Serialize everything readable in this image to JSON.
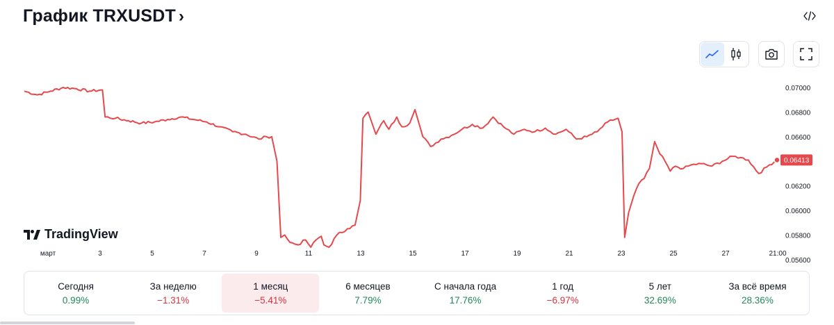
{
  "header": {
    "title": "График TRXUSDT",
    "chevron": "›",
    "embed_icon": "code-embed-icon"
  },
  "toolbar": {
    "line_icon": "line-chart-icon",
    "candles_icon": "candlestick-icon",
    "screenshot_icon": "camera-icon",
    "fullscreen_icon": "fullscreen-icon"
  },
  "branding": {
    "logo_text": "TradingView"
  },
  "colors": {
    "line": "#e5484d",
    "positive": "#22875a",
    "negative": "#d8323c",
    "active_tab": "#fcebec",
    "price_tag": "#e5484d"
  },
  "chart_data": {
    "type": "line",
    "symbol": "TRXUSDT",
    "y_ticks": [
      "0.07000",
      "0.06800",
      "0.06600",
      "0.06400",
      "0.06200",
      "0.06000",
      "0.05800",
      "0.05600"
    ],
    "ylim": [
      0.055,
      0.071
    ],
    "x_ticks": [
      "март",
      "3",
      "5",
      "7",
      "9",
      "11",
      "13",
      "15",
      "17",
      "19",
      "21",
      "23",
      "25",
      "27",
      "21:00"
    ],
    "last_price": "0.06413",
    "series": [
      {
        "x": [
          0,
          0.5,
          1,
          1.5,
          2,
          2.5,
          3,
          3.1,
          3.5,
          4,
          4.5,
          5,
          5.5,
          6,
          6.5,
          7,
          7.5,
          8,
          8.5,
          9,
          9.3,
          9.5,
          9.7,
          9.85,
          10,
          10.2,
          10.5,
          10.8,
          11,
          11.2,
          11.4,
          11.5,
          11.7,
          12,
          12.4,
          12.7,
          12.9,
          13.0,
          13.2,
          13.5,
          13.8,
          14,
          14.3,
          14.5,
          14.8,
          15,
          15.3,
          15.6,
          16,
          16.4,
          16.8,
          17.2,
          17.6,
          18,
          18.4,
          18.8,
          19.2,
          19.6,
          20,
          20.4,
          20.8,
          21.2,
          21.6,
          22,
          22.4,
          22.8,
          22.95,
          23.05,
          23.2,
          23.4,
          23.6,
          23.8,
          24,
          24.2,
          24.4,
          24.6,
          24.8,
          25,
          25.3,
          25.6,
          26,
          26.4,
          26.8,
          27.2,
          27.5,
          27.8,
          28.2,
          28.6,
          28.9
        ],
        "y": [
          0.0697,
          0.0694,
          0.0697,
          0.07,
          0.0699,
          0.0697,
          0.0698,
          0.0676,
          0.0675,
          0.0673,
          0.0671,
          0.0672,
          0.0674,
          0.0676,
          0.0674,
          0.0672,
          0.0668,
          0.0664,
          0.0662,
          0.0658,
          0.066,
          0.066,
          0.064,
          0.0578,
          0.058,
          0.0574,
          0.0572,
          0.0576,
          0.057,
          0.0576,
          0.0579,
          0.0572,
          0.057,
          0.058,
          0.0585,
          0.0588,
          0.0608,
          0.0675,
          0.068,
          0.0662,
          0.0673,
          0.0666,
          0.0676,
          0.0668,
          0.0671,
          0.0682,
          0.066,
          0.0652,
          0.0658,
          0.0661,
          0.0666,
          0.067,
          0.0667,
          0.0676,
          0.0668,
          0.0662,
          0.0666,
          0.0664,
          0.0667,
          0.0662,
          0.0666,
          0.0658,
          0.066,
          0.0664,
          0.0672,
          0.0675,
          0.0664,
          0.0578,
          0.0598,
          0.0612,
          0.0622,
          0.0626,
          0.0634,
          0.0656,
          0.0646,
          0.064,
          0.0632,
          0.0636,
          0.0634,
          0.0637,
          0.0638,
          0.0636,
          0.064,
          0.0644,
          0.0643,
          0.0641,
          0.063,
          0.0637,
          0.0641
        ]
      }
    ]
  },
  "performance": [
    {
      "label": "Сегодня",
      "value": "0.99%",
      "sign": "pos",
      "active": false
    },
    {
      "label": "За неделю",
      "value": "−1.31%",
      "sign": "neg",
      "active": false
    },
    {
      "label": "1 месяц",
      "value": "−5.41%",
      "sign": "neg",
      "active": true
    },
    {
      "label": "6 месяцев",
      "value": "7.79%",
      "sign": "pos",
      "active": false
    },
    {
      "label": "С начала года",
      "value": "17.76%",
      "sign": "pos",
      "active": false
    },
    {
      "label": "1 год",
      "value": "−6.97%",
      "sign": "neg",
      "active": false
    },
    {
      "label": "5 лет",
      "value": "32.69%",
      "sign": "pos",
      "active": false
    },
    {
      "label": "За всё время",
      "value": "28.36%",
      "sign": "pos",
      "active": false
    }
  ]
}
